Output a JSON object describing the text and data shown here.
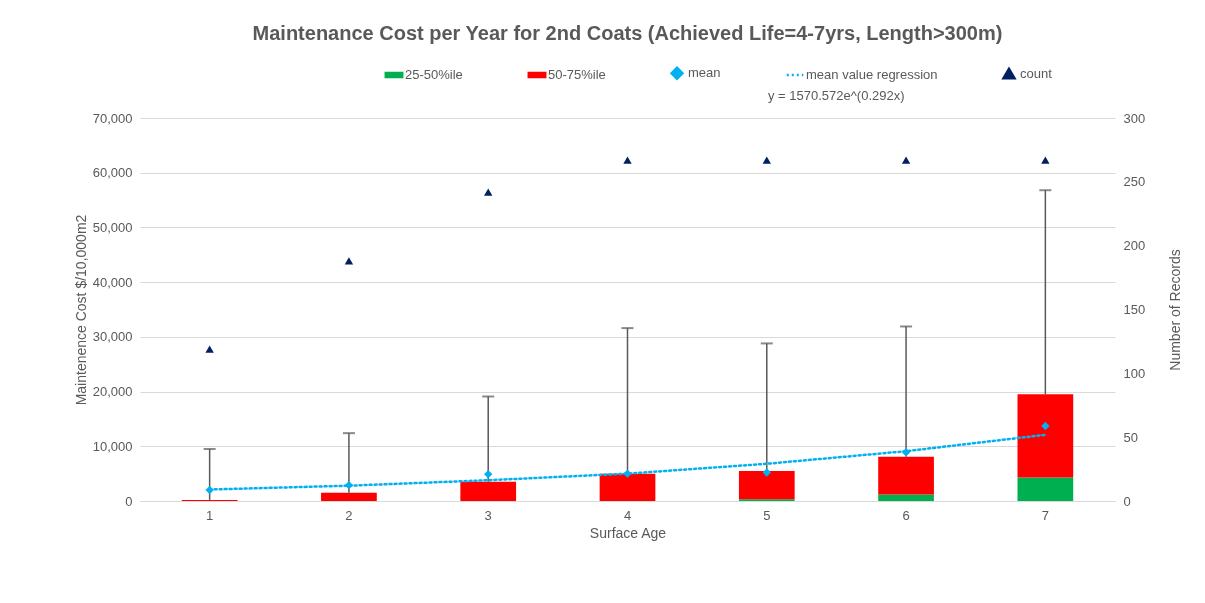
{
  "chart_data": {
    "type": "bar",
    "stacked": true,
    "title": "Maintenance Cost per Year for 2nd Coats (Achieved Life=4-7yrs, Length>300m)",
    "xlabel": "Surface Age",
    "ylabel": "Maintenence Cost $/10,000m2",
    "y2label": "Number of Records",
    "categories": [
      "1",
      "2",
      "3",
      "4",
      "5",
      "6",
      "7"
    ],
    "series": [
      {
        "name": "25-50%ile",
        "color": "#00b050",
        "values": [
          0,
          0,
          0,
          0,
          300,
          1200,
          4300
        ]
      },
      {
        "name": "50-75%ile",
        "color": "#ff0000",
        "values": [
          200,
          1500,
          3500,
          5000,
          5200,
          6900,
          15200
        ],
        "errors": [
          [
            200,
            9500
          ],
          [
            1500,
            12400
          ],
          [
            3500,
            19100
          ],
          [
            5000,
            31600
          ],
          [
            5500,
            28800
          ],
          [
            8100,
            31900
          ],
          [
            19500,
            56800
          ]
        ]
      },
      {
        "name": "mean",
        "type": "scatter",
        "marker": "diamond",
        "color": "#00b0f0",
        "values": [
          2000,
          2900,
          4900,
          5000,
          5200,
          8900,
          13700
        ]
      },
      {
        "name": "mean value regression",
        "type": "line",
        "marker": "none",
        "line_style": "dotted",
        "color": "#00b0f0",
        "values": [
          2100,
          2800,
          3800,
          5000,
          6800,
          9100,
          12100
        ]
      },
      {
        "name": "count",
        "type": "scatter",
        "marker": "triangle",
        "axis": "y2",
        "color": "#002060",
        "values": [
          119,
          188,
          242,
          267,
          267,
          267,
          267
        ]
      }
    ],
    "ylim": [
      0,
      70000
    ],
    "yticks": [
      0,
      {
        "value": 10000,
        "label": "10,000"
      },
      {
        "value": 20000,
        "label": "20,000"
      },
      {
        "value": 30000,
        "label": "30,000"
      },
      {
        "value": 40000,
        "label": "40,000"
      },
      {
        "value": 50000,
        "label": "50,000"
      },
      {
        "value": 60000,
        "label": "60,000"
      },
      {
        "value": 70000,
        "label": "70,000"
      }
    ],
    "y2lim": [
      0,
      300
    ],
    "y2ticks": [
      0,
      50,
      100,
      150,
      200,
      250,
      300
    ],
    "grid": "y",
    "legend": "top",
    "annotations": [
      "y = 1570.572e^(0.292x)"
    ]
  }
}
